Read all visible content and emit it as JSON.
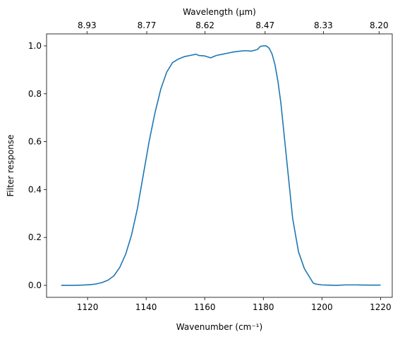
{
  "chart_data": {
    "type": "line",
    "title": "",
    "xlabel": "Wavenumber (cm⁻¹)",
    "ylabel": "Filter response",
    "top_xlabel": "Wavelength (μm)",
    "xlim": [
      1106,
      1224
    ],
    "ylim": [
      -0.05,
      1.05
    ],
    "xticks": [
      1120,
      1140,
      1160,
      1180,
      1200,
      1220
    ],
    "xtick_labels": [
      "1120",
      "1140",
      "1160",
      "1180",
      "1200",
      "1220"
    ],
    "yticks": [
      0.0,
      0.2,
      0.4,
      0.6,
      0.8,
      1.0
    ],
    "ytick_labels": [
      "0.0",
      "0.2",
      "0.4",
      "0.6",
      "0.8",
      "1.0"
    ],
    "top_xticks": [
      1119.8,
      1140.2,
      1160.1,
      1180.6,
      1200.5,
      1219.5
    ],
    "top_xtick_labels": [
      "8.93",
      "8.77",
      "8.62",
      "8.47",
      "8.33",
      "8.20"
    ],
    "grid": false,
    "legend": "none",
    "colors": {
      "line": "#1f77b4"
    },
    "series": [
      {
        "values_x": [
          1111,
          1115,
          1118,
          1121,
          1123,
          1125,
          1127,
          1129,
          1131,
          1133,
          1135,
          1137,
          1139,
          1141,
          1143,
          1145,
          1147,
          1149,
          1151,
          1153,
          1155,
          1157,
          1158,
          1160,
          1162,
          1164,
          1166,
          1168,
          1170,
          1172,
          1174,
          1176,
          1178,
          1179,
          1180,
          1181,
          1182,
          1183,
          1184,
          1185,
          1186,
          1188,
          1190,
          1192,
          1194,
          1196,
          1197,
          1198,
          1200,
          1202,
          1205,
          1208,
          1212,
          1216,
          1220
        ],
        "values_y": [
          0.0,
          0.0,
          0.001,
          0.003,
          0.006,
          0.012,
          0.022,
          0.04,
          0.075,
          0.13,
          0.21,
          0.32,
          0.46,
          0.6,
          0.72,
          0.82,
          0.89,
          0.93,
          0.945,
          0.955,
          0.96,
          0.965,
          0.96,
          0.958,
          0.95,
          0.96,
          0.965,
          0.97,
          0.975,
          0.978,
          0.98,
          0.978,
          0.985,
          0.998,
          1.0,
          1.0,
          0.99,
          0.965,
          0.92,
          0.85,
          0.76,
          0.52,
          0.28,
          0.14,
          0.07,
          0.03,
          0.01,
          0.005,
          0.002,
          0.001,
          0.0,
          0.002,
          0.002,
          0.001,
          0.001
        ]
      }
    ]
  }
}
